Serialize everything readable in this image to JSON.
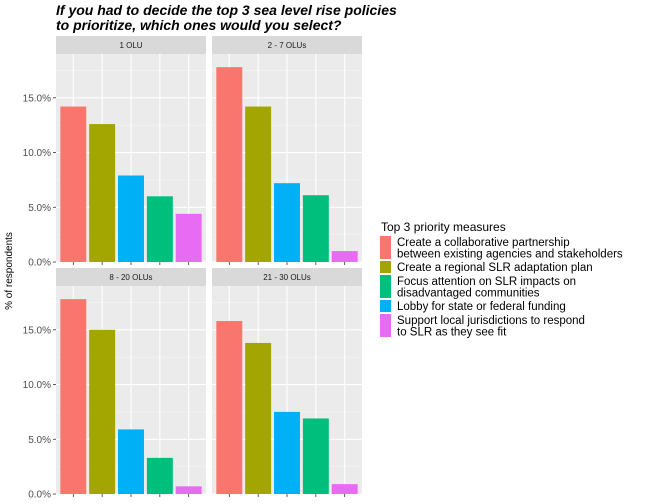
{
  "title_lines": [
    "If you had to decide the top 3 sea level rise policies",
    "to prioritize, which ones would you select?"
  ],
  "chart_data": {
    "type": "bar",
    "ylabel": "% of respondents",
    "xlabel": "",
    "ylim": [
      0,
      0.19
    ],
    "y_ticks": [
      0,
      0.05,
      0.1,
      0.15
    ],
    "y_tick_labels": [
      "0.0%",
      "5.0%",
      "10.0%",
      "15.0%"
    ],
    "grid": true,
    "legend_position": "right",
    "legend_title": "Top 3 priority measures",
    "series": [
      {
        "name": "Create a collaborative partnership between existing agencies and stakeholders",
        "label_lines": [
          "Create a collaborative partnership",
          "between existing agencies and stakeholders"
        ],
        "color": "#F8766D"
      },
      {
        "name": "Create a regional SLR adaptation plan",
        "label_lines": [
          "Create a regional SLR adaptation plan"
        ],
        "color": "#A3A500"
      },
      {
        "name": "Focus attention on SLR impacts on disadvantaged communities",
        "label_lines": [
          "Focus attention on SLR impacts on",
          "disadvantaged communities"
        ],
        "color": "#00BF7D"
      },
      {
        "name": "Lobby for state or federal funding",
        "label_lines": [
          "Lobby for state or federal funding"
        ],
        "color": "#00B0F6"
      },
      {
        "name": "Support local jurisdictions to respond to SLR as they see fit",
        "label_lines": [
          "Support local jurisdictions to respond",
          "to SLR as they see fit"
        ],
        "color": "#E76BF3"
      }
    ],
    "panels": [
      {
        "label": "1 OLU",
        "bars": [
          {
            "series": 0,
            "value": 0.142
          },
          {
            "series": 1,
            "value": 0.126
          },
          {
            "series": 3,
            "value": 0.079
          },
          {
            "series": 2,
            "value": 0.06
          },
          {
            "series": 4,
            "value": 0.044
          }
        ]
      },
      {
        "label": "2 - 7 OLUs",
        "bars": [
          {
            "series": 0,
            "value": 0.178
          },
          {
            "series": 1,
            "value": 0.142
          },
          {
            "series": 3,
            "value": 0.072
          },
          {
            "series": 2,
            "value": 0.061
          },
          {
            "series": 4,
            "value": 0.01
          }
        ]
      },
      {
        "label": "8 - 20 OLUs",
        "bars": [
          {
            "series": 0,
            "value": 0.178
          },
          {
            "series": 1,
            "value": 0.15
          },
          {
            "series": 3,
            "value": 0.059
          },
          {
            "series": 2,
            "value": 0.033
          },
          {
            "series": 4,
            "value": 0.007
          }
        ]
      },
      {
        "label": "21 - 30 OLUs",
        "bars": [
          {
            "series": 0,
            "value": 0.158
          },
          {
            "series": 1,
            "value": 0.138
          },
          {
            "series": 3,
            "value": 0.075
          },
          {
            "series": 2,
            "value": 0.069
          },
          {
            "series": 4,
            "value": 0.009
          }
        ]
      }
    ]
  }
}
